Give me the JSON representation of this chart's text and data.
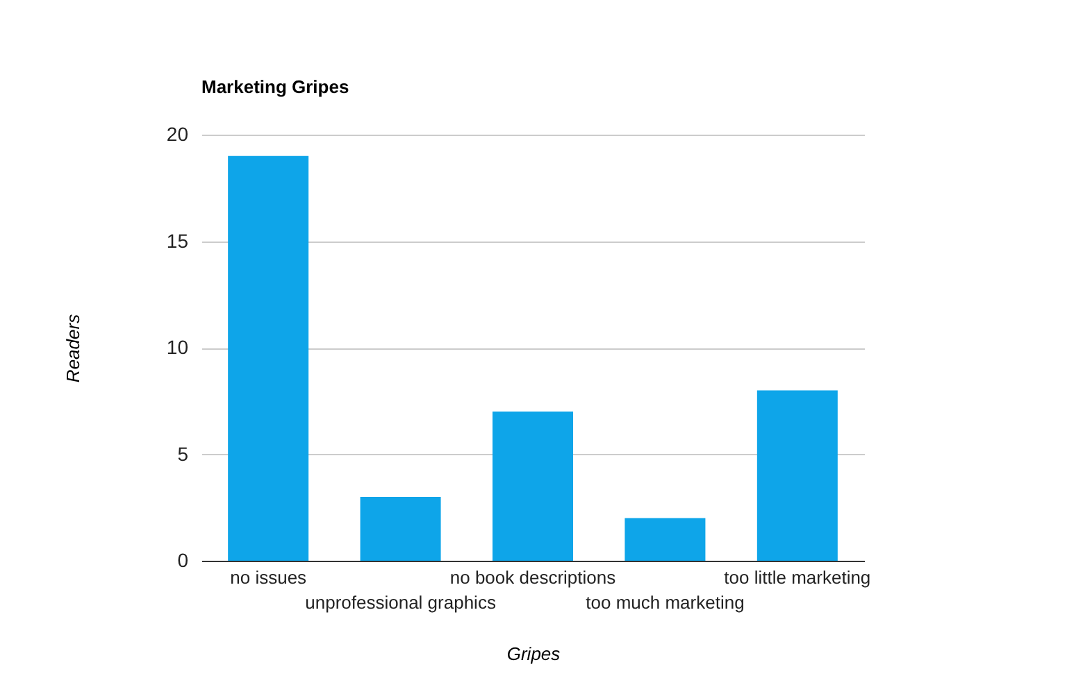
{
  "chart_data": {
    "type": "bar",
    "title": "Marketing Gripes",
    "xlabel": "Gripes",
    "ylabel": "Readers",
    "categories": [
      "no issues",
      "unprofessional graphics",
      "no book descriptions",
      "too much marketing",
      "too little marketing"
    ],
    "values": [
      19,
      3,
      7,
      2,
      8
    ],
    "color": "#0ea5e9",
    "ylim": [
      0,
      20
    ],
    "yticks": [
      0,
      5,
      10,
      15,
      20
    ],
    "grid": "y"
  }
}
